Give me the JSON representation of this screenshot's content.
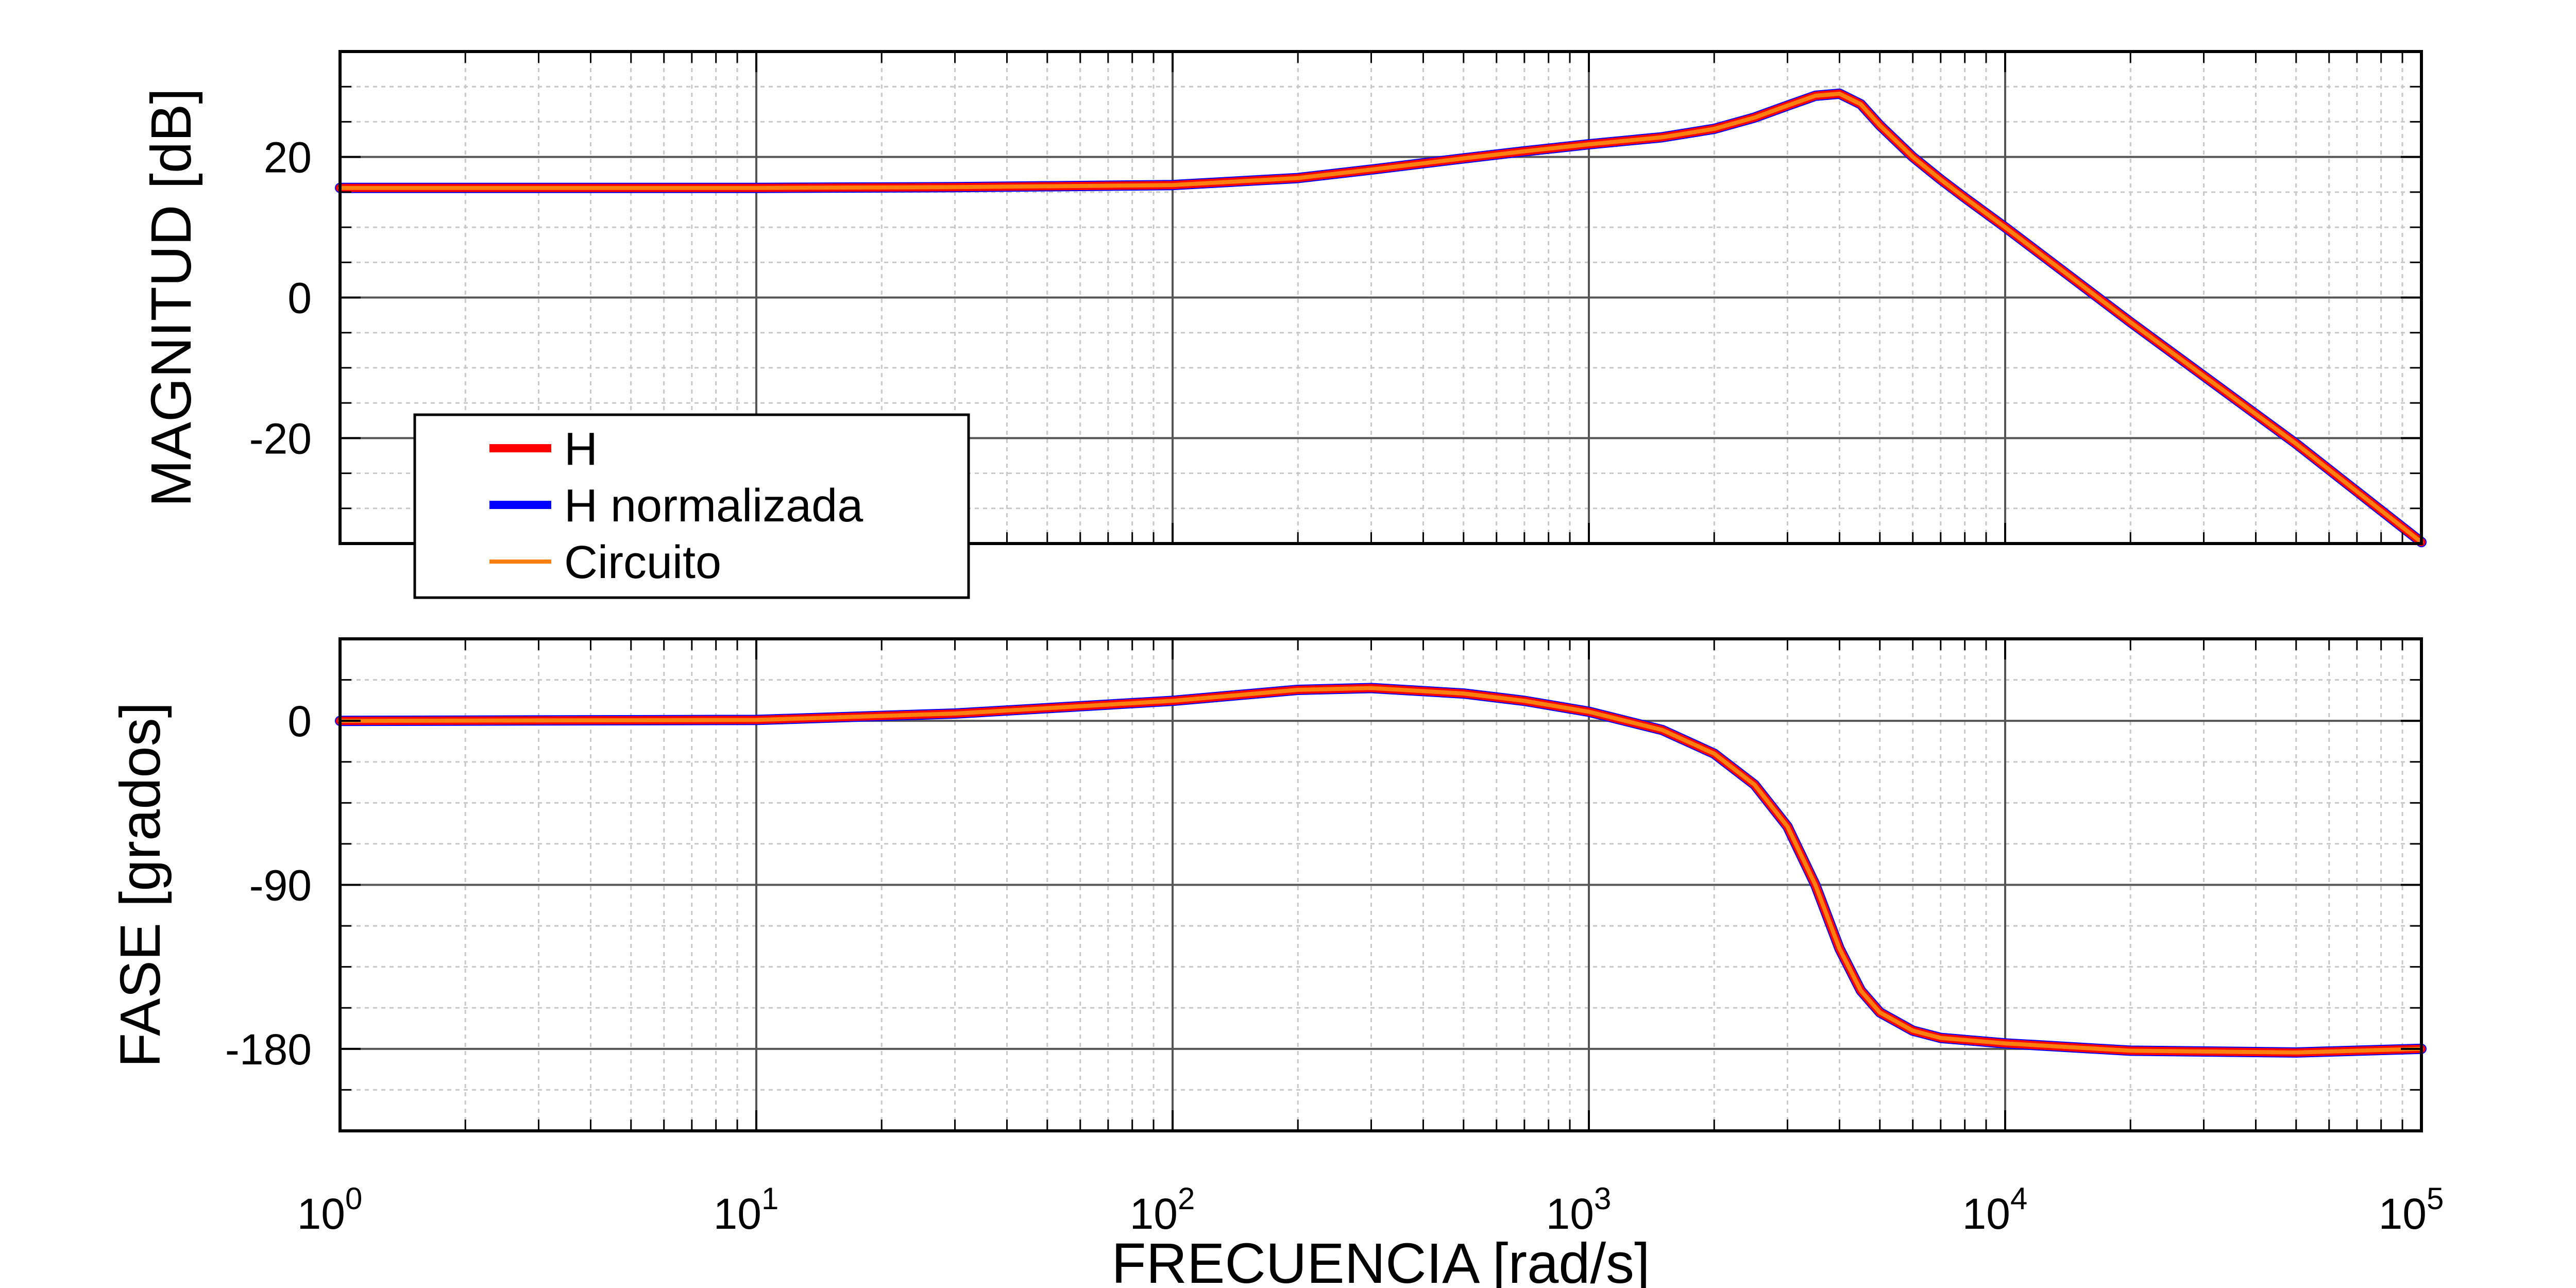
{
  "chart_data": [
    {
      "type": "line",
      "panel": "magnitude",
      "title": "",
      "xlabel": "",
      "ylabel": "MAGNITUD [dB]",
      "xscale": "log",
      "xlim": [
        1,
        100000
      ],
      "ylim": [
        -35,
        35
      ],
      "yticks": [
        20,
        0,
        -20
      ],
      "ytick_labels": [
        "20",
        "0",
        "-20"
      ],
      "grid": true,
      "legend": "bottom-left",
      "x": [
        1,
        10,
        30,
        100,
        200,
        300,
        500,
        700,
        1000,
        1500,
        2000,
        2500,
        3000,
        3500,
        4000,
        4500,
        5000,
        6000,
        7000,
        8000,
        10000,
        20000,
        50000,
        100000
      ],
      "series": [
        {
          "name": "H",
          "color": "#ff0000",
          "values": [
            15.6,
            15.6,
            15.7,
            16.0,
            17.0,
            18.2,
            19.8,
            20.8,
            21.8,
            22.8,
            24.0,
            25.6,
            27.3,
            28.7,
            29.0,
            27.5,
            24.5,
            20.0,
            16.8,
            14.2,
            10.0,
            -3.5,
            -20.8,
            -34.8
          ]
        },
        {
          "name": "H normalizada",
          "color": "#0000ff",
          "values": [
            15.6,
            15.6,
            15.7,
            16.0,
            17.0,
            18.2,
            19.8,
            20.8,
            21.8,
            22.8,
            24.0,
            25.6,
            27.3,
            28.7,
            29.0,
            27.5,
            24.5,
            20.0,
            16.8,
            14.2,
            10.0,
            -3.5,
            -20.8,
            -34.8
          ]
        },
        {
          "name": "Circuito",
          "color": "#ff7f0e",
          "values": [
            15.6,
            15.6,
            15.7,
            16.0,
            17.0,
            18.2,
            19.8,
            20.8,
            21.8,
            22.8,
            24.0,
            25.6,
            27.3,
            28.7,
            29.0,
            27.5,
            24.5,
            20.0,
            16.8,
            14.2,
            10.0,
            -3.5,
            -20.8,
            -34.8
          ]
        }
      ]
    },
    {
      "type": "line",
      "panel": "phase",
      "title": "",
      "xlabel": "FRECUENCIA  [rad/s]",
      "ylabel": "FASE  [grados]",
      "xscale": "log",
      "xlim": [
        1,
        100000
      ],
      "xtick_values": [
        1,
        10,
        100,
        1000,
        10000,
        100000
      ],
      "xtick_bases": [
        "10",
        "10",
        "10",
        "10",
        "10",
        "10"
      ],
      "xtick_exponents": [
        "0",
        "1",
        "2",
        "3",
        "4",
        "5"
      ],
      "ylim": [
        -225,
        45
      ],
      "yticks": [
        0,
        -90,
        -180
      ],
      "ytick_labels": [
        "0",
        "-90",
        "-180"
      ],
      "grid": true,
      "x": [
        1,
        10,
        30,
        100,
        200,
        300,
        500,
        700,
        1000,
        1500,
        2000,
        2500,
        3000,
        3500,
        4000,
        4500,
        5000,
        6000,
        7000,
        10000,
        20000,
        50000,
        100000
      ],
      "series": [
        {
          "name": "H",
          "color": "#ff0000",
          "values": [
            0,
            0.5,
            4,
            11,
            17,
            18,
            15,
            11,
            5,
            -5,
            -18,
            -35,
            -58,
            -90,
            -125,
            -148,
            -160,
            -170,
            -174,
            -177,
            -181,
            -182,
            -180
          ]
        },
        {
          "name": "H normalizada",
          "color": "#0000ff",
          "values": [
            0,
            0.5,
            4,
            11,
            17,
            18,
            15,
            11,
            5,
            -5,
            -18,
            -35,
            -58,
            -90,
            -125,
            -148,
            -160,
            -170,
            -174,
            -177,
            -181,
            -182,
            -180
          ]
        },
        {
          "name": "Circuito",
          "color": "#ff7f0e",
          "values": [
            0,
            0.5,
            4,
            11,
            17,
            18,
            15,
            11,
            5,
            -5,
            -18,
            -35,
            -58,
            -90,
            -125,
            -148,
            -160,
            -170,
            -174,
            -177,
            -181,
            -182,
            -180
          ]
        }
      ]
    }
  ]
}
